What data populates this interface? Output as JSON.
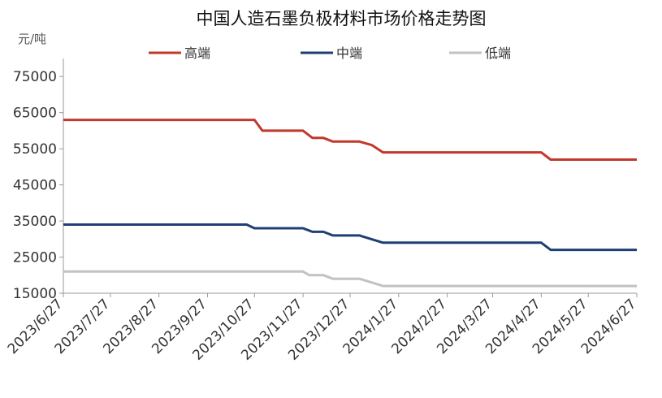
{
  "chart_data": {
    "type": "line",
    "title": "中国人造石墨负极材料市场价格走势图",
    "ylabel": "元/吨",
    "xlabel": "",
    "ylim": [
      15000,
      80000
    ],
    "yticks": [
      15000,
      25000,
      35000,
      45000,
      55000,
      65000,
      75000
    ],
    "ytick_labels": [
      "15000",
      "25000",
      "35000",
      "45000",
      "55000",
      "65000",
      "75000"
    ],
    "xlim": [
      "2023-06-27",
      "2024-06-27"
    ],
    "categories": [
      "2023/6/27",
      "2023/7/27",
      "2023/8/27",
      "2023/9/27",
      "2023/10/27",
      "2023/11/27",
      "2023/12/27",
      "2024/1/27",
      "2024/2/27",
      "2024/3/27",
      "2024/4/27",
      "2024/5/27",
      "2024/6/27"
    ],
    "grid": false,
    "legend_position": "top",
    "series": [
      {
        "name": "高端",
        "color": "#c0392b",
        "x": [
          "2023-06-27",
          "2023-10-27",
          "2023-11-01",
          "2023-11-27",
          "2023-12-03",
          "2023-12-10",
          "2023-12-16",
          "2023-12-27",
          "2024-01-02",
          "2024-01-10",
          "2024-01-17",
          "2024-04-27",
          "2024-05-03",
          "2024-06-27"
        ],
        "values": [
          63000,
          63000,
          60000,
          60000,
          58000,
          58000,
          57000,
          57000,
          57000,
          56000,
          54000,
          54000,
          52000,
          52000
        ]
      },
      {
        "name": "中端",
        "color": "#1f3f73",
        "x": [
          "2023-06-27",
          "2023-10-22",
          "2023-10-27",
          "2023-11-27",
          "2023-12-03",
          "2023-12-10",
          "2023-12-16",
          "2023-12-27",
          "2024-01-02",
          "2024-01-17",
          "2024-04-27",
          "2024-05-03",
          "2024-06-27"
        ],
        "values": [
          34000,
          34000,
          33000,
          33000,
          32000,
          32000,
          31000,
          31000,
          31000,
          29000,
          29000,
          27000,
          27000
        ]
      },
      {
        "name": "低端",
        "color": "#c2c2c2",
        "x": [
          "2023-06-27",
          "2023-11-27",
          "2023-12-01",
          "2023-12-10",
          "2023-12-16",
          "2023-12-27",
          "2024-01-02",
          "2024-01-17",
          "2024-06-27"
        ],
        "values": [
          21000,
          21000,
          20000,
          20000,
          19000,
          19000,
          19000,
          17000,
          17000
        ]
      }
    ]
  }
}
